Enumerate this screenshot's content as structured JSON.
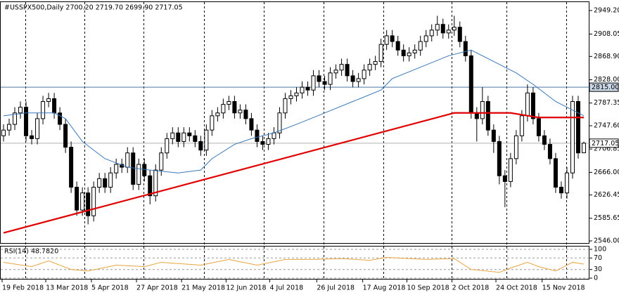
{
  "chart_data": [
    {
      "type": "candlestick",
      "title": "#USSPX500,Daily  2700.20 2719.70 2699.90 2717.05",
      "open": [
        2730,
        2740,
        2750,
        2770,
        2780,
        2730,
        2725,
        2760,
        2790,
        2795,
        2770,
        2750,
        2710,
        2640,
        2600,
        2630,
        2590,
        2640,
        2655,
        2640,
        2665,
        2680,
        2675,
        2700,
        2645,
        2680,
        2660,
        2625,
        2670,
        2700,
        2725,
        2735,
        2720,
        2735,
        2730,
        2720,
        2705,
        2740,
        2765,
        2770,
        2785,
        2790,
        2770,
        2775,
        2760,
        2740,
        2720,
        2715,
        2725,
        2735,
        2770,
        2795,
        2800,
        2805,
        2815,
        2810,
        2835,
        2825,
        2820,
        2840,
        2845,
        2855,
        2835,
        2825,
        2830,
        2845,
        2855,
        2860,
        2890,
        2905,
        2895,
        2880,
        2870,
        2875,
        2880,
        2895,
        2905,
        2915,
        2925,
        2910,
        2915,
        2920,
        2895,
        2870,
        2770,
        2760,
        2790,
        2740,
        2720,
        2660,
        2650,
        2690,
        2730,
        2765,
        2805,
        2760,
        2730,
        2715,
        2690,
        2640,
        2630,
        2665,
        2790,
        2700.2
      ],
      "high": [
        2750,
        2760,
        2780,
        2790,
        2790,
        2740,
        2770,
        2800,
        2805,
        2805,
        2780,
        2760,
        2720,
        2650,
        2640,
        2640,
        2650,
        2665,
        2665,
        2675,
        2690,
        2690,
        2710,
        2710,
        2690,
        2690,
        2670,
        2680,
        2710,
        2735,
        2745,
        2745,
        2745,
        2745,
        2740,
        2730,
        2750,
        2775,
        2780,
        2795,
        2800,
        2800,
        2785,
        2785,
        2770,
        2750,
        2730,
        2735,
        2745,
        2780,
        2805,
        2810,
        2815,
        2825,
        2825,
        2845,
        2845,
        2835,
        2850,
        2855,
        2865,
        2865,
        2845,
        2840,
        2855,
        2865,
        2870,
        2900,
        2915,
        2915,
        2905,
        2890,
        2885,
        2890,
        2905,
        2915,
        2925,
        2940,
        2935,
        2925,
        2940,
        2930,
        2905,
        2880,
        2780,
        2815,
        2800,
        2750,
        2730,
        2670,
        2700,
        2740,
        2775,
        2820,
        2815,
        2770,
        2740,
        2725,
        2700,
        2650,
        2675,
        2800,
        2800,
        2719.7
      ],
      "low": [
        2720,
        2730,
        2740,
        2760,
        2720,
        2715,
        2715,
        2750,
        2780,
        2760,
        2740,
        2700,
        2630,
        2590,
        2590,
        2575,
        2580,
        2630,
        2630,
        2630,
        2655,
        2665,
        2665,
        2635,
        2635,
        2650,
        2610,
        2615,
        2660,
        2690,
        2715,
        2710,
        2710,
        2720,
        2710,
        2695,
        2695,
        2730,
        2755,
        2760,
        2775,
        2760,
        2760,
        2750,
        2730,
        2710,
        2705,
        2705,
        2715,
        2725,
        2760,
        2785,
        2790,
        2795,
        2800,
        2800,
        2815,
        2810,
        2810,
        2830,
        2835,
        2825,
        2815,
        2815,
        2820,
        2835,
        2845,
        2850,
        2880,
        2885,
        2870,
        2860,
        2860,
        2865,
        2870,
        2885,
        2895,
        2905,
        2900,
        2900,
        2905,
        2885,
        2860,
        2760,
        2720,
        2750,
        2730,
        2700,
        2645,
        2605,
        2640,
        2680,
        2720,
        2755,
        2750,
        2720,
        2705,
        2680,
        2630,
        2620,
        2620,
        2655,
        2690,
        2699.9
      ],
      "close": [
        2740,
        2750,
        2770,
        2780,
        2730,
        2725,
        2760,
        2790,
        2795,
        2770,
        2750,
        2710,
        2640,
        2600,
        2630,
        2590,
        2640,
        2655,
        2640,
        2665,
        2680,
        2675,
        2700,
        2645,
        2680,
        2660,
        2625,
        2670,
        2700,
        2725,
        2735,
        2720,
        2735,
        2730,
        2720,
        2705,
        2740,
        2765,
        2770,
        2785,
        2790,
        2770,
        2775,
        2760,
        2740,
        2720,
        2715,
        2725,
        2735,
        2770,
        2795,
        2800,
        2805,
        2815,
        2810,
        2835,
        2825,
        2820,
        2840,
        2845,
        2855,
        2835,
        2825,
        2830,
        2845,
        2855,
        2860,
        2890,
        2905,
        2895,
        2880,
        2870,
        2875,
        2880,
        2895,
        2905,
        2915,
        2925,
        2910,
        2915,
        2920,
        2895,
        2870,
        2770,
        2760,
        2790,
        2740,
        2720,
        2660,
        2650,
        2690,
        2730,
        2765,
        2805,
        2760,
        2730,
        2715,
        2690,
        2640,
        2630,
        2665,
        2790,
        2700,
        2717.05
      ],
      "overlays": [
        {
          "color": "#3a78b8",
          "x": [
            0,
            4,
            9,
            11,
            14,
            18,
            22,
            26,
            31,
            35,
            37,
            41,
            44,
            48,
            52,
            57,
            62,
            67,
            69,
            74,
            79,
            83,
            87,
            91,
            94,
            98,
            103
          ],
          "values": [
            2765,
            2770,
            2770,
            2760,
            2720,
            2690,
            2675,
            2670,
            2665,
            2670,
            2690,
            2715,
            2725,
            2735,
            2750,
            2770,
            2790,
            2810,
            2830,
            2850,
            2870,
            2880,
            2860,
            2840,
            2820,
            2790,
            2765
          ]
        },
        {
          "color": "#e00000",
          "x": [
            0,
            80,
            90,
            95,
            103
          ],
          "values": [
            2560,
            2770,
            2770,
            2762,
            2762
          ]
        }
      ],
      "levels": [
        {
          "value": 2815,
          "label": "2815.00",
          "color": "#4f78a8",
          "box_color": "#c9d6e6"
        },
        {
          "value": 2717.05,
          "label": "2717.05",
          "color": "#b0b0b0",
          "box_color": "#ffffff"
        }
      ],
      "xlim": [
        -0.625,
        104
      ],
      "ylim": [
        2546,
        2949.2
      ],
      "yticks": [
        {
          "value": 2949.2,
          "label": "2949.20"
        },
        2908.05,
        {
          "value": 2868.9,
          "label": "2868.90"
        },
        {
          "value": 2828,
          "label": "2828.00"
        },
        2787.35,
        {
          "value": 2747.6,
          "label": "2747.60"
        },
        2706.85,
        {
          "value": 2666,
          "label": "2666.00"
        },
        2626.45,
        2585.65,
        {
          "value": 2546,
          "label": "2546.00"
        }
      ],
      "xticks": [
        {
          "value": -0.25,
          "label": "19 Feb 2018"
        },
        {
          "value": 7.5,
          "label": "13 Mar 2018"
        },
        {
          "value": 15.6,
          "label": "5 Apr 2018"
        },
        {
          "value": 23.6,
          "label": "27 Apr 2018"
        },
        {
          "value": 31.6,
          "label": "21 May 2018"
        },
        {
          "value": 39.5,
          "label": "12 Jun 2018"
        },
        {
          "value": 47.25,
          "label": "4 Jul 2018"
        },
        {
          "value": 55.6,
          "label": "26 Jul 2018"
        },
        {
          "value": 63.75,
          "label": "17 Aug 2018"
        },
        {
          "value": 71.6,
          "label": "10 Sep 2018"
        },
        {
          "value": 79.6,
          "label": "2 Oct 2018"
        },
        {
          "value": 87.4,
          "label": "24 Oct 2018"
        },
        {
          "value": 95.6,
          "label": "15 Nov 2018"
        }
      ]
    },
    {
      "type": "line",
      "title": "RSI(14) 48.7820",
      "color": "#e8a33d",
      "x": [
        0,
        5,
        8,
        12,
        15,
        20,
        25,
        28,
        35,
        40,
        45,
        50,
        55,
        60,
        65,
        68,
        75,
        80,
        83,
        88,
        90,
        93,
        95,
        98,
        101,
        103
      ],
      "values": [
        55,
        40,
        60,
        30,
        25,
        45,
        40,
        55,
        45,
        65,
        45,
        65,
        65,
        68,
        62,
        72,
        65,
        68,
        30,
        20,
        35,
        55,
        40,
        25,
        55,
        48.782
      ],
      "ylim": [
        0,
        100
      ],
      "yticks": [
        100,
        70,
        30,
        0
      ],
      "grid": true
    }
  ]
}
